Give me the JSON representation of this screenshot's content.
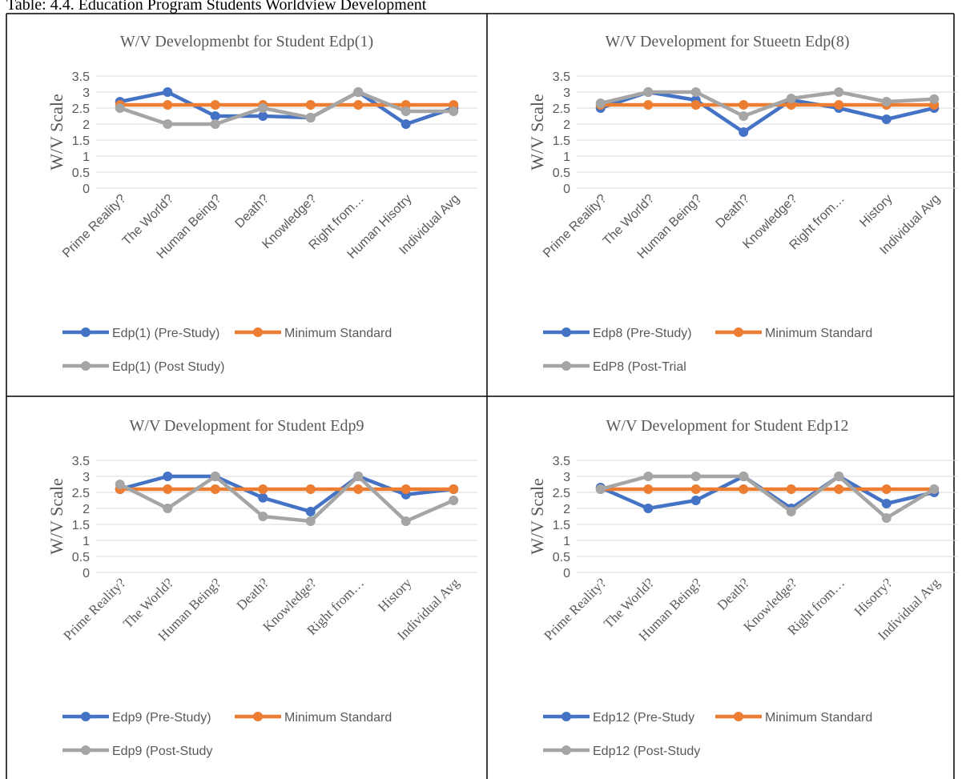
{
  "caption": "Table: 4.4. Education Program Students Worldview Development",
  "chart_data": [
    {
      "type": "line",
      "title": "W/V Developmenbt for Student Edp(1)",
      "ylabel": "W/V Scale",
      "categories": [
        "Prime Reality?",
        "The World?",
        "Human Being?",
        "Death?",
        "Knowledge?",
        "Right from…",
        "Human Hisotry",
        "Individual Avg"
      ],
      "series": [
        {
          "name": "Edp(1) (Pre-Study)",
          "color": "#4472c4",
          "values": [
            2.7,
            3.0,
            2.25,
            2.25,
            2.2,
            3.0,
            2.0,
            2.5
          ]
        },
        {
          "name": "Minimum Standard",
          "color": "#ed7d31",
          "values": [
            2.6,
            2.6,
            2.6,
            2.6,
            2.6,
            2.6,
            2.6,
            2.6
          ]
        },
        {
          "name": "Edp(1) (Post Study)",
          "color": "#a5a5a5",
          "values": [
            2.5,
            2.0,
            2.0,
            2.5,
            2.2,
            3.0,
            2.4,
            2.4
          ]
        }
      ],
      "ylim": [
        0,
        3.5
      ],
      "yticks": [
        0,
        0.5,
        1,
        1.5,
        2,
        2.5,
        3,
        3.5
      ],
      "grid": true,
      "legend": "bottom"
    },
    {
      "type": "line",
      "title": "W/V Development for Stueetn Edp(8)",
      "ylabel": "W/V Scale",
      "categories": [
        "Prime Reality?",
        "The World?",
        "Human Being?",
        "Death?",
        "Knowledge?",
        "Right from…",
        "History",
        "Individual Avg"
      ],
      "series": [
        {
          "name": "Edp8 (Pre-Study)",
          "color": "#4472c4",
          "values": [
            2.5,
            3.0,
            2.75,
            1.75,
            2.75,
            2.5,
            2.15,
            2.5
          ]
        },
        {
          "name": "Minimum Standard",
          "color": "#ed7d31",
          "values": [
            2.6,
            2.6,
            2.6,
            2.6,
            2.6,
            2.6,
            2.6,
            2.6
          ]
        },
        {
          "name": "EdP8 (Post-Trial",
          "color": "#a5a5a5",
          "values": [
            2.65,
            3.0,
            3.0,
            2.25,
            2.8,
            3.0,
            2.7,
            2.78
          ]
        }
      ],
      "ylim": [
        0,
        3.5
      ],
      "yticks": [
        0,
        0.5,
        1,
        1.5,
        2,
        2.5,
        3,
        3.5
      ],
      "grid": true,
      "legend": "bottom"
    },
    {
      "type": "line",
      "title": "W/V Development for Student Edp9",
      "ylabel": "W/V Scale",
      "categories": [
        "Prime Reality?",
        "The World?",
        "Human Being?",
        "Death?",
        "Knowledge?",
        "Right from…",
        "History",
        "Individual Avg"
      ],
      "series": [
        {
          "name": "Edp9 (Pre-Study)",
          "color": "#4472c4",
          "values": [
            2.6,
            3.0,
            3.0,
            2.33,
            1.9,
            3.0,
            2.43,
            2.6
          ]
        },
        {
          "name": "Minimum Standard",
          "color": "#ed7d31",
          "values": [
            2.6,
            2.6,
            2.6,
            2.6,
            2.6,
            2.6,
            2.6,
            2.6
          ]
        },
        {
          "name": "Edp9 (Post-Study",
          "color": "#a5a5a5",
          "values": [
            2.75,
            2.0,
            3.0,
            1.75,
            1.6,
            3.0,
            1.6,
            2.25
          ]
        }
      ],
      "ylim": [
        0,
        3.5
      ],
      "yticks": [
        0,
        0.5,
        1,
        1.5,
        2,
        2.5,
        3,
        3.5
      ],
      "grid": true,
      "legend": "bottom"
    },
    {
      "type": "line",
      "title": "W/V Development for Student Edp12",
      "ylabel": "W/V Scale",
      "categories": [
        "Prime Reality?",
        "The World?",
        "Human Being?",
        "Death?",
        "Knowledge?",
        "Right from…",
        "Hisotry?",
        "Individual Avg"
      ],
      "series": [
        {
          "name": "Edp12 (Pre-Study",
          "color": "#4472c4",
          "values": [
            2.65,
            2.0,
            2.25,
            3.0,
            2.0,
            3.0,
            2.15,
            2.5
          ]
        },
        {
          "name": "Minimum Standard",
          "color": "#ed7d31",
          "values": [
            2.6,
            2.6,
            2.6,
            2.6,
            2.6,
            2.6,
            2.6,
            2.6
          ]
        },
        {
          "name": "Edp12 (Post-Study",
          "color": "#a5a5a5",
          "values": [
            2.6,
            3.0,
            3.0,
            3.0,
            1.9,
            3.0,
            1.7,
            2.6
          ]
        }
      ],
      "ylim": [
        0,
        3.5
      ],
      "yticks": [
        0,
        0.5,
        1,
        1.5,
        2,
        2.5,
        3,
        3.5
      ],
      "grid": true,
      "legend": "bottom"
    }
  ]
}
